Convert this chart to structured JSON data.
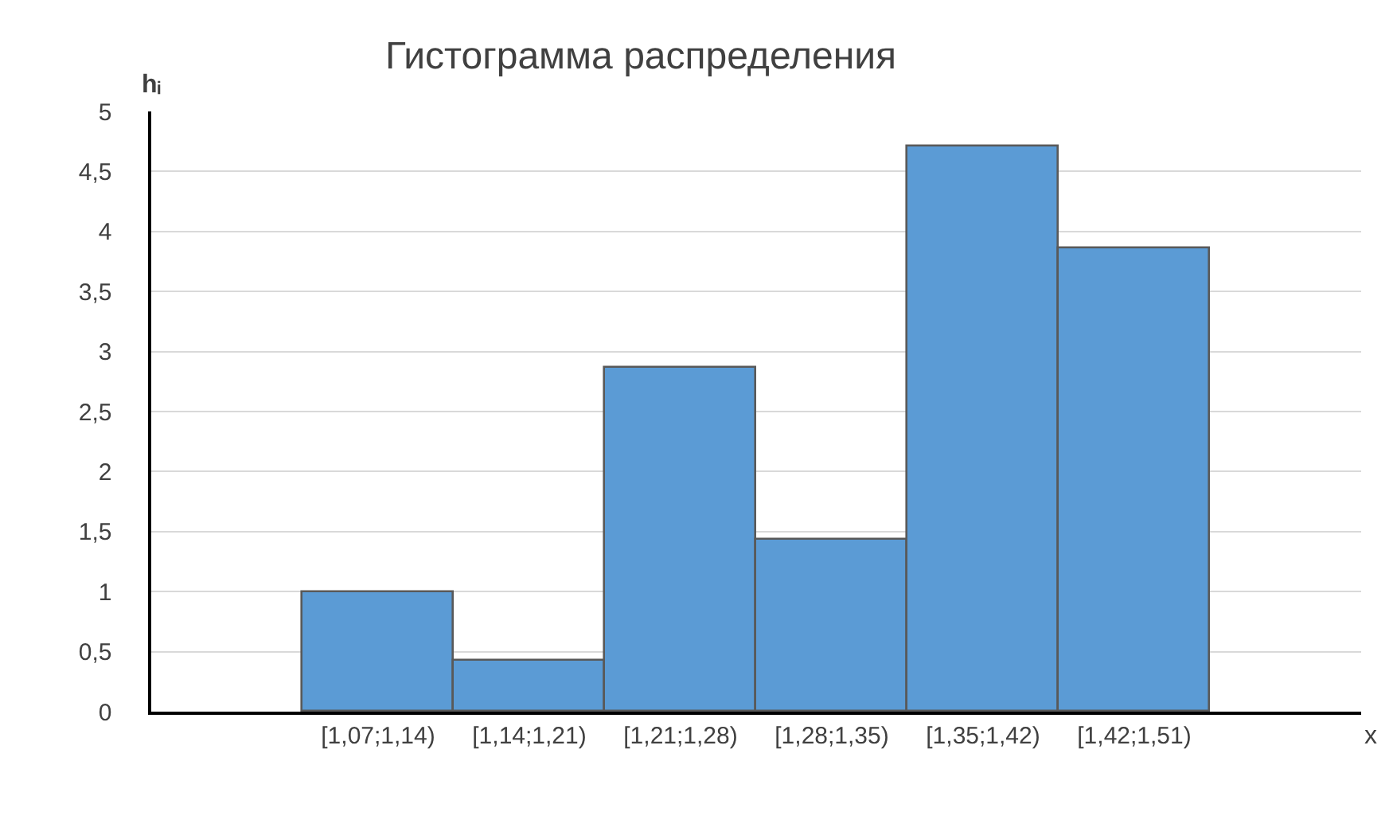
{
  "chart_data": {
    "type": "bar",
    "title": "Гистограмма распределения",
    "xlabel": "x",
    "ylabel": "hᵢ",
    "categories": [
      null,
      "[1,07;1,14)",
      "[1,14;1,21)",
      "[1,21;1,28)",
      "[1,28;1,35)",
      "[1,35;1,42)",
      "[1,42;1,51)",
      null
    ],
    "values": [
      null,
      1,
      0.43,
      2.86,
      1.43,
      4.71,
      3.86,
      null
    ],
    "color": "#5b9bd5",
    "ylim": [
      0,
      5
    ],
    "yticks": [
      0,
      {
        "value": 0.5,
        "label": "0,5"
      },
      1,
      {
        "value": 1.5,
        "label": "1,5"
      },
      2,
      {
        "value": 2.5,
        "label": "2,5"
      },
      3,
      {
        "value": 3.5,
        "label": "3,5"
      },
      4,
      {
        "value": 4.5,
        "label": "4,5"
      },
      5
    ],
    "grid": "y"
  }
}
